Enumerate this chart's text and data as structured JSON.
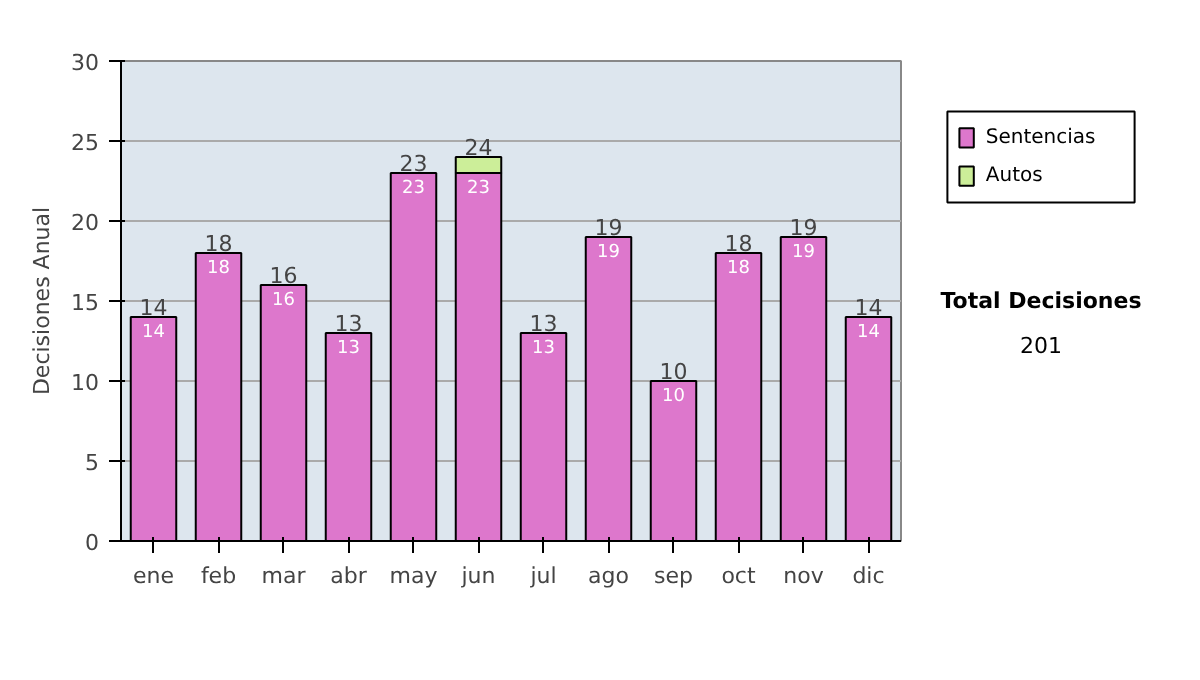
{
  "chart_data": {
    "type": "bar",
    "stacked": true,
    "ylabel": "Decisiones Anual",
    "categories": [
      "ene",
      "feb",
      "mar",
      "abr",
      "may",
      "jun",
      "jul",
      "ago",
      "sep",
      "oct",
      "nov",
      "dic"
    ],
    "series": [
      {
        "name": "Sentencias",
        "color": "#dd77cc",
        "values": [
          14,
          18,
          16,
          13,
          23,
          23,
          13,
          19,
          10,
          18,
          19,
          14
        ],
        "value_labels": [
          "14",
          "18",
          "16",
          "13",
          "23",
          "23",
          "13",
          "19",
          "10",
          "18",
          "19",
          "14"
        ]
      },
      {
        "name": "Autos",
        "color": "#ccee99",
        "values": [
          null,
          null,
          null,
          null,
          null,
          1,
          null,
          null,
          null,
          null,
          null,
          null
        ]
      }
    ],
    "totals": [
      "14",
      "18",
      "16",
      "13",
      "23",
      "24",
      "13",
      "19",
      "10",
      "18",
      "19",
      "14"
    ],
    "ylim": [
      0,
      30
    ],
    "yticks": [
      0,
      5,
      10,
      15,
      20,
      25,
      30
    ],
    "grid": "y",
    "legend": "right",
    "annotations": [
      "Total Decisiones",
      "201"
    ]
  }
}
